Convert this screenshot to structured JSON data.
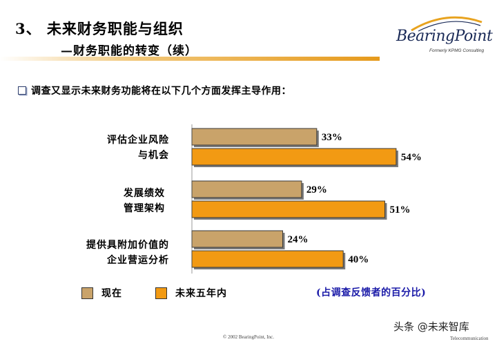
{
  "header": {
    "title": "3、 未来财务职能与组织",
    "subtitle": "—财务职能的转变（续）"
  },
  "logo": {
    "name": "BearingPoint",
    "tagline": "Formerly KPMG Consulting",
    "colors": {
      "arc": "#e8a31f",
      "text": "#1a2a57"
    }
  },
  "bullet": {
    "icon": "checkbox-bullet-icon",
    "text": "调查又显示未来财务功能将在以下几个方面发挥主导作用："
  },
  "chart_data": {
    "type": "bar",
    "orientation": "horizontal",
    "categories": [
      [
        "评估企业风险",
        "与机会"
      ],
      [
        "发展绩效",
        "管理架构"
      ],
      [
        "提供具附加价值的",
        "企业营运分析"
      ]
    ],
    "series": [
      {
        "name": "现在",
        "values": [
          33,
          29,
          24
        ],
        "color": "#c9a36a"
      },
      {
        "name": "未来五年内",
        "values": [
          54,
          51,
          40
        ],
        "color": "#f29a13"
      }
    ],
    "value_suffix": "%",
    "grid": false,
    "legend_position": "bottom",
    "note": "(占调查反馈者的百分比)"
  },
  "footer": {
    "copyright": "© 2002 BearingPoint, Inc.",
    "watermark": "头条 @未来智库",
    "sub_label": "Telecommunication"
  }
}
